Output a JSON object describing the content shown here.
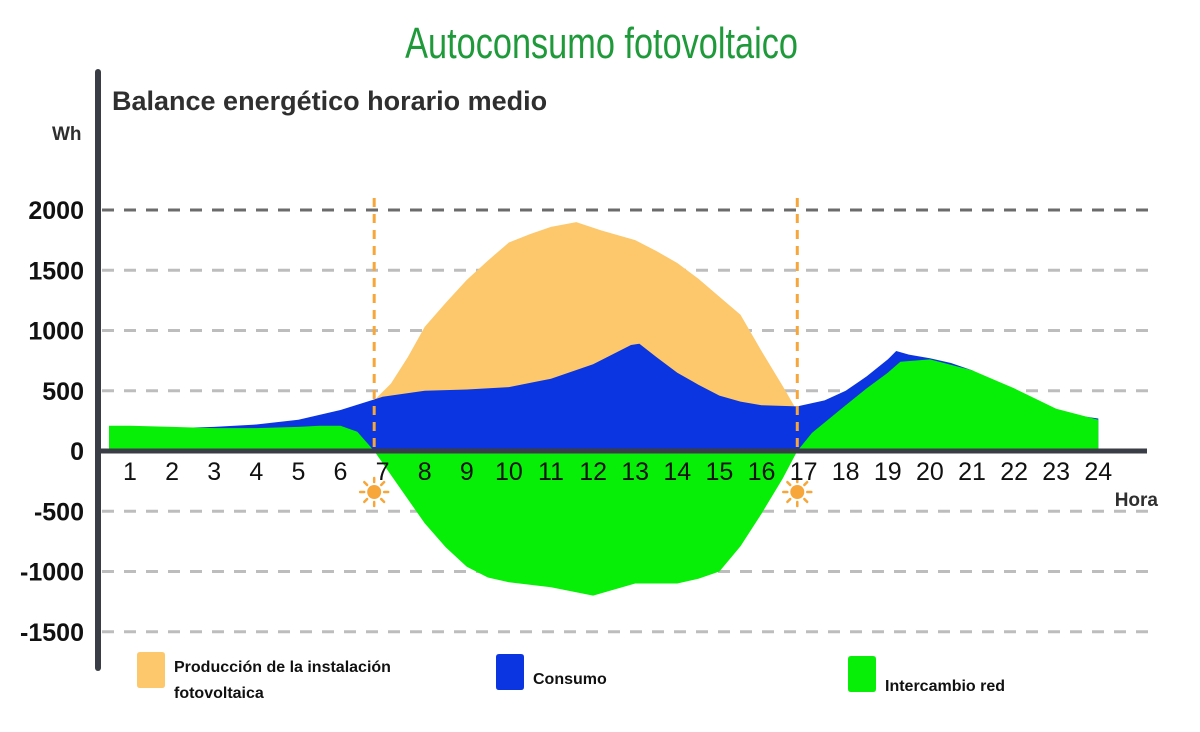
{
  "colors": {
    "title": "#1f9a3a",
    "text": "#2f2f2f",
    "produccion": "#fdc76b",
    "consumo": "#0a35e0",
    "intercambio": "#07ef07",
    "sunrise": "#f7a63a",
    "grid": "#bdbdbd",
    "axis": "#3a3d45"
  },
  "chart_data": {
    "type": "area",
    "title": "Autoconsumo fotovoltaico",
    "subtitle": "Balance energético horario medio",
    "ylabel": "Wh",
    "xlabel": "Hora",
    "ylim": [
      -1850,
      2300
    ],
    "xlim": [
      0.5,
      24
    ],
    "yticks": [
      {
        "value": 2000,
        "label": "2000"
      },
      {
        "value": 1500,
        "label": "1500"
      },
      {
        "value": 1000,
        "label": "1000"
      },
      {
        "value": 500,
        "label": "500"
      },
      {
        "value": 0,
        "label": "0"
      },
      {
        "value": -500,
        "label": "-500"
      },
      {
        "value": -1000,
        "label": "-1000"
      },
      {
        "value": -1500,
        "label": "-1500"
      }
    ],
    "xticks": [
      "1",
      "2",
      "3",
      "4",
      "5",
      "6",
      "7",
      "8",
      "9",
      "10",
      "11",
      "12",
      "13",
      "14",
      "15",
      "16",
      "17",
      "18",
      "19",
      "20",
      "21",
      "22",
      "23",
      "24"
    ],
    "grid": true,
    "sunrise_hour": 6.8,
    "sunset_hour": 16.85,
    "series": [
      {
        "name": "Producción de la instalación fotovoltaica",
        "points": [
          [
            6.8,
            420
          ],
          [
            7.2,
            560
          ],
          [
            7.6,
            780
          ],
          [
            8.0,
            1030
          ],
          [
            8.5,
            1230
          ],
          [
            9.0,
            1420
          ],
          [
            9.5,
            1580
          ],
          [
            10.0,
            1730
          ],
          [
            10.5,
            1800
          ],
          [
            11.0,
            1860
          ],
          [
            11.6,
            1900
          ],
          [
            12.2,
            1830
          ],
          [
            13.0,
            1750
          ],
          [
            13.5,
            1660
          ],
          [
            14.0,
            1560
          ],
          [
            14.5,
            1430
          ],
          [
            15.0,
            1280
          ],
          [
            15.5,
            1130
          ],
          [
            16.0,
            830
          ],
          [
            16.5,
            540
          ],
          [
            16.85,
            330
          ]
        ]
      },
      {
        "name": "Consumo",
        "points": [
          [
            0.5,
            190
          ],
          [
            1,
            180
          ],
          [
            2,
            190
          ],
          [
            3,
            200
          ],
          [
            4,
            220
          ],
          [
            5,
            260
          ],
          [
            6,
            340
          ],
          [
            7,
            450
          ],
          [
            8,
            500
          ],
          [
            9,
            510
          ],
          [
            10,
            530
          ],
          [
            11,
            600
          ],
          [
            12,
            720
          ],
          [
            12.9,
            880
          ],
          [
            13.1,
            890
          ],
          [
            13.5,
            780
          ],
          [
            14,
            650
          ],
          [
            14.5,
            550
          ],
          [
            15,
            460
          ],
          [
            15.5,
            410
          ],
          [
            16,
            380
          ],
          [
            16.85,
            370
          ],
          [
            17.5,
            420
          ],
          [
            18,
            500
          ],
          [
            18.5,
            620
          ],
          [
            19,
            760
          ],
          [
            19.2,
            830
          ],
          [
            19.5,
            800
          ],
          [
            20,
            770
          ],
          [
            20.5,
            730
          ],
          [
            21,
            670
          ],
          [
            22,
            490
          ],
          [
            23,
            320
          ],
          [
            24,
            270
          ]
        ]
      },
      {
        "name": "Intercambio red",
        "points": [
          [
            0.5,
            210
          ],
          [
            1,
            210
          ],
          [
            2,
            200
          ],
          [
            3,
            190
          ],
          [
            4,
            190
          ],
          [
            5,
            200
          ],
          [
            5.5,
            210
          ],
          [
            6.0,
            210
          ],
          [
            6.4,
            160
          ],
          [
            6.8,
            0
          ],
          [
            7.4,
            -300
          ],
          [
            8.0,
            -600
          ],
          [
            8.5,
            -800
          ],
          [
            9.0,
            -960
          ],
          [
            9.5,
            -1050
          ],
          [
            10.0,
            -1090
          ],
          [
            11.0,
            -1130
          ],
          [
            12.0,
            -1200
          ],
          [
            13.0,
            -1100
          ],
          [
            14.0,
            -1100
          ],
          [
            14.5,
            -1060
          ],
          [
            15.0,
            -1000
          ],
          [
            15.5,
            -790
          ],
          [
            16.0,
            -520
          ],
          [
            16.5,
            -230
          ],
          [
            16.85,
            0
          ],
          [
            17.2,
            150
          ],
          [
            18.0,
            380
          ],
          [
            18.5,
            520
          ],
          [
            19.0,
            650
          ],
          [
            19.3,
            740
          ],
          [
            20.0,
            760
          ],
          [
            21.0,
            670
          ],
          [
            22.0,
            520
          ],
          [
            23.0,
            350
          ],
          [
            24.0,
            260
          ]
        ]
      }
    ]
  },
  "legend": [
    {
      "name": "Producción de la instalación fotovoltaica",
      "lines": [
        "Producción de la instalación",
        "fotovoltaica"
      ]
    },
    {
      "name": "Consumo",
      "lines": [
        "Consumo"
      ]
    },
    {
      "name": "Intercambio red",
      "lines": [
        "Intercambio red"
      ]
    }
  ]
}
